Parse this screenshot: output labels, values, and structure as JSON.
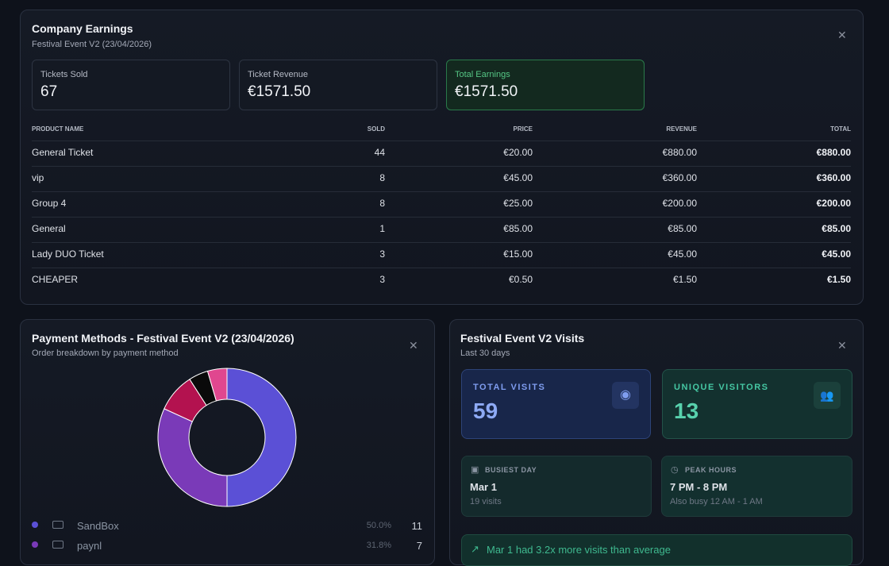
{
  "earnings": {
    "title": "Company Earnings",
    "subtitle": "Festival Event V2 (23/04/2026)",
    "stats": [
      {
        "label": "Tickets Sold",
        "value": "67"
      },
      {
        "label": "Ticket Revenue",
        "value": "€1571.50"
      },
      {
        "label": "Total Earnings",
        "value": "€1571.50"
      }
    ],
    "table": {
      "headers": [
        "PRODUCT NAME",
        "SOLD",
        "PRICE",
        "REVENUE",
        "TOTAL"
      ],
      "rows": [
        [
          "General Ticket",
          "44",
          "€20.00",
          "€880.00",
          "€880.00"
        ],
        [
          "vip",
          "8",
          "€45.00",
          "€360.00",
          "€360.00"
        ],
        [
          "Group 4",
          "8",
          "€25.00",
          "€200.00",
          "€200.00"
        ],
        [
          "General",
          "1",
          "€85.00",
          "€85.00",
          "€85.00"
        ],
        [
          "Lady DUO Ticket",
          "3",
          "€15.00",
          "€45.00",
          "€45.00"
        ],
        [
          "CHEAPER",
          "3",
          "€0.50",
          "€1.50",
          "€1.50"
        ]
      ]
    }
  },
  "payments": {
    "title": "Payment Methods - Festival Event V2 (23/04/2026)",
    "subtitle": "Order breakdown by payment method",
    "chart": {
      "type": "pie",
      "categories": [
        "SandBox",
        "paynl",
        null,
        null,
        null
      ],
      "values": [
        11,
        7,
        2,
        1,
        1
      ],
      "percent_labels": [
        "50.0%",
        "31.8%",
        null,
        null,
        null
      ],
      "colors": [
        "#5b50d6",
        "#7a3ab8",
        "#b3124f",
        "#0a0a0a",
        "#e0478f"
      ]
    }
  },
  "visits": {
    "title": "Festival Event V2 Visits",
    "subtitle": "Last 30 days",
    "total_visits": {
      "label": "TOTAL VISITS",
      "value": "59"
    },
    "unique_visitors": {
      "label": "UNIQUE VISITORS",
      "value": "13"
    },
    "busiest_day": {
      "label": "BUSIEST DAY",
      "value": "Mar 1",
      "detail": "19 visits"
    },
    "peak_hours": {
      "label": "PEAK HOURS",
      "value": "7 PM - 8 PM",
      "detail": "Also busy 12 AM - 1 AM"
    },
    "insight": "Mar 1 had 3.2x more visits than average"
  }
}
